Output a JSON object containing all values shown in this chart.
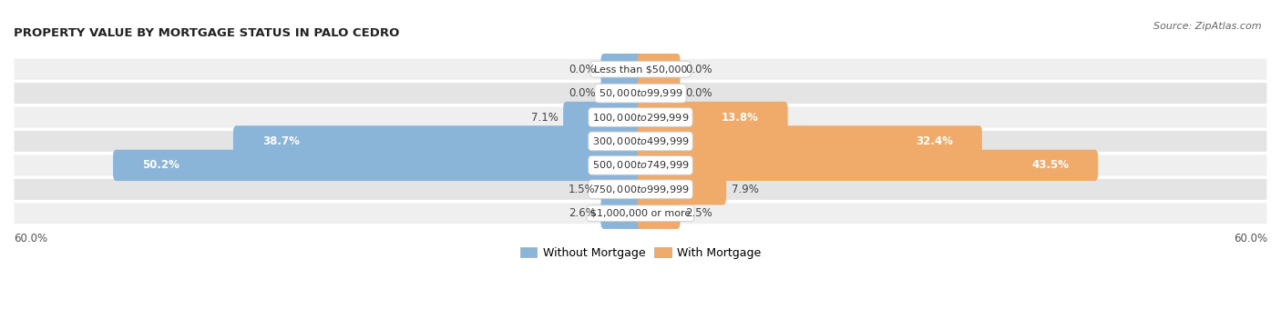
{
  "title": "PROPERTY VALUE BY MORTGAGE STATUS IN PALO CEDRO",
  "source": "Source: ZipAtlas.com",
  "categories": [
    "Less than $50,000",
    "$50,000 to $99,999",
    "$100,000 to $299,999",
    "$300,000 to $499,999",
    "$500,000 to $749,999",
    "$750,000 to $999,999",
    "$1,000,000 or more"
  ],
  "without_mortgage": [
    0.0,
    0.0,
    7.1,
    38.7,
    50.2,
    1.5,
    2.6
  ],
  "with_mortgage": [
    0.0,
    0.0,
    13.8,
    32.4,
    43.5,
    7.9,
    2.5
  ],
  "color_without": "#8ab4d8",
  "color_with": "#f0aa6a",
  "max_val": 60.0,
  "row_color_light": "#efefef",
  "row_color_dark": "#e4e4e4",
  "legend_without": "Without Mortgage",
  "legend_with": "With Mortgage",
  "axis_label_left": "60.0%",
  "axis_label_right": "60.0%"
}
